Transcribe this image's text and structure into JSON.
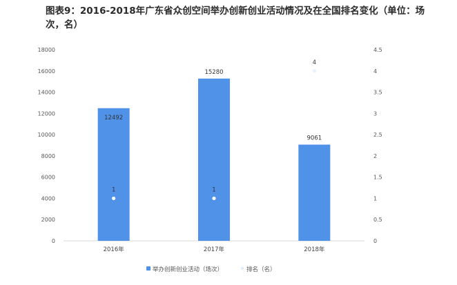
{
  "chart_data": {
    "type": "bar",
    "title": "图表9：2016-2018年广东省众创空间举办创新创业活动情况及在全国排名变化（单位：场次，名）",
    "categories": [
      "2016年",
      "2017年",
      "2018年"
    ],
    "series": [
      {
        "name": "举办创新创业活动（场次）",
        "kind": "bar",
        "axis": "left",
        "values": [
          12492,
          15280,
          9061
        ],
        "labels": [
          "12492",
          "15280",
          "9061"
        ]
      },
      {
        "name": "排名（名）",
        "kind": "scatter",
        "axis": "right",
        "values": [
          1,
          1,
          4
        ],
        "labels": [
          "1",
          "1",
          "4"
        ]
      }
    ],
    "y_left": {
      "ylim": [
        0,
        18000
      ],
      "ticks": [
        "0",
        "2000",
        "4000",
        "6000",
        "8000",
        "10000",
        "12000",
        "14000",
        "16000",
        "18000"
      ]
    },
    "y_right": {
      "ylim": [
        0,
        4.5
      ],
      "ticks": [
        "0",
        "0.5",
        "1",
        "1.5",
        "2",
        "2.5",
        "3",
        "3.5",
        "4",
        "4.5"
      ]
    },
    "legend_position": "bottom-center",
    "grid": false,
    "colors": {
      "bar": "#4f92e8",
      "point": "#ffffff",
      "point_2018": "#e8f3fb",
      "axis": "#d9d9d9"
    }
  }
}
